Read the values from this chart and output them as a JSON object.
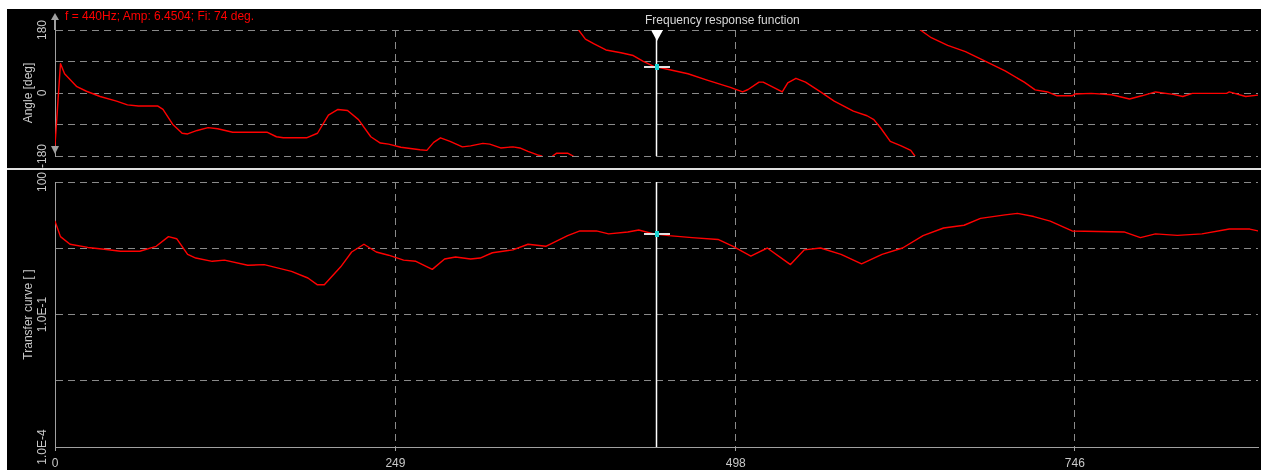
{
  "chart_data": [
    {
      "type": "line",
      "title": "Frequency response function",
      "ylabel": "Angle [deg]",
      "annotations": [
        "f = 440Hz; Amp: 6.4504; Fi: 74 deg."
      ],
      "xlim": [
        0,
        880
      ],
      "xticks": [
        0,
        249,
        498,
        746
      ],
      "ylim": [
        -180,
        180
      ],
      "yticks": [
        -180,
        {
          "value": -90,
          "label": null
        },
        0,
        {
          "value": 90,
          "label": null
        },
        180
      ],
      "tick_labels": "y",
      "grid": true,
      "ref_lines": [
        {
          "axis": "x",
          "value": 440,
          "color": "#ffffff"
        }
      ],
      "series": [
        {
          "color": "#ff0000",
          "x": [
            0,
            4,
            7,
            16,
            23,
            33,
            45,
            53,
            61,
            75,
            79,
            86,
            93,
            97,
            104,
            112,
            119,
            130,
            155,
            162,
            167,
            184,
            192,
            200,
            207,
            214,
            222,
            231,
            238,
            244,
            253,
            267,
            272,
            277,
            282,
            289,
            298,
            304,
            313,
            318,
            326,
            335,
            340,
            346,
            353,
            356,
            360,
            364,
            367,
            375,
            379,
            381,
            383,
            388,
            394,
            403,
            414,
            423,
            430,
            438,
            448,
            463,
            477,
            494,
            503,
            507,
            515,
            518,
            532,
            536,
            542,
            549,
            560,
            570,
            584,
            594,
            599,
            604,
            611,
            619,
            626,
            629,
            631,
            633,
            641,
            653,
            666,
            680,
            695,
            709,
            717,
            726,
            733,
            744,
            746,
            758,
            773,
            786,
            795,
            805,
            818,
            825,
            832,
            857,
            859,
            871,
            880
          ],
          "values": [
            -150,
            84,
            55,
            18,
            5,
            -10,
            -23,
            -34,
            -37,
            -37,
            -47,
            -89,
            -115,
            -117,
            -107,
            -99,
            -102,
            -112,
            -112,
            -125,
            -128,
            -128,
            -115,
            -63,
            -47,
            -50,
            -76,
            -125,
            -143,
            -146,
            -155,
            -162,
            -164,
            -141,
            -128,
            -138,
            -154,
            -151,
            -144,
            -146,
            -157,
            -154,
            -157,
            -167,
            -177,
            -180,
            null,
            -180,
            -172,
            -172,
            -180,
            null,
            180,
            154,
            141,
            123,
            115,
            107,
            91,
            76,
            68,
            55,
            37,
            16,
            3,
            10,
            31,
            31,
            3,
            29,
            42,
            31,
            3,
            -23,
            -52,
            -65,
            -76,
            -100,
            -138,
            -151,
            -164,
            -180,
            null,
            180,
            158,
            136,
            118,
            92,
            63,
            31,
            9,
            3,
            -8,
            -8,
            -3,
            -1,
            -5,
            -17,
            -8,
            3,
            -4,
            -10,
            -1,
            -1,
            3,
            -10,
            -6
          ]
        }
      ]
    },
    {
      "type": "line",
      "ylabel": "Transfer curve [ ]",
      "log": true,
      "xlim": [
        0,
        880
      ],
      "xticks": [
        0,
        249,
        498,
        746
      ],
      "ylim": [
        0.0001,
        100
      ],
      "yticks": [
        100,
        {
          "value": 3.162,
          "label": null
        },
        {
          "value": 0.1,
          "label": "1.0E-1"
        },
        {
          "value": 0.003162,
          "label": null
        },
        {
          "value": 0.0001,
          "label": "1.0E-4"
        }
      ],
      "grid": true,
      "ref_lines": [
        {
          "axis": "x",
          "value": 440,
          "color": "#ffffff"
        }
      ],
      "series": [
        {
          "color": "#ff0000",
          "x": [
            0,
            4,
            11,
            24,
            36,
            48,
            62,
            74,
            83,
            89,
            97,
            103,
            115,
            124,
            141,
            153,
            173,
            185,
            192,
            197,
            209,
            217,
            226,
            235,
            244,
            255,
            264,
            276,
            285,
            293,
            304,
            311,
            320,
            335,
            346,
            359,
            375,
            384,
            396,
            405,
            419,
            427,
            438,
            449,
            466,
            485,
            496,
            509,
            521,
            538,
            548,
            560,
            575,
            590,
            605,
            620,
            635,
            650,
            665,
            677,
            695,
            704,
            716,
            728,
            744,
            782,
            794,
            805,
            821,
            839,
            859,
            874,
            880
          ],
          "values": [
            13,
            5.8,
            3.9,
            3.3,
            3.0,
            2.7,
            2.7,
            3.5,
            5.8,
            5.2,
            2.3,
            1.9,
            1.6,
            1.7,
            1.3,
            1.35,
            0.95,
            0.67,
            0.47,
            0.47,
            1.2,
            2.6,
            3.9,
            2.6,
            2.2,
            1.7,
            1.6,
            1.05,
            1.8,
            2.0,
            1.8,
            1.9,
            2.5,
            2.9,
            3.9,
            3.5,
            6.1,
            7.8,
            7.8,
            6.7,
            7.4,
            8.2,
            6.7,
            6.1,
            5.5,
            5.0,
            3.5,
            2.1,
            3.2,
            1.35,
            2.9,
            3.2,
            2.3,
            1.4,
            2.3,
            3.2,
            6.1,
            9.1,
            10.5,
            15,
            18,
            19.5,
            16.5,
            13,
            7.8,
            7.4,
            5.5,
            6.7,
            6.2,
            6.7,
            8.6,
            8.6,
            7.8
          ]
        }
      ]
    }
  ]
}
